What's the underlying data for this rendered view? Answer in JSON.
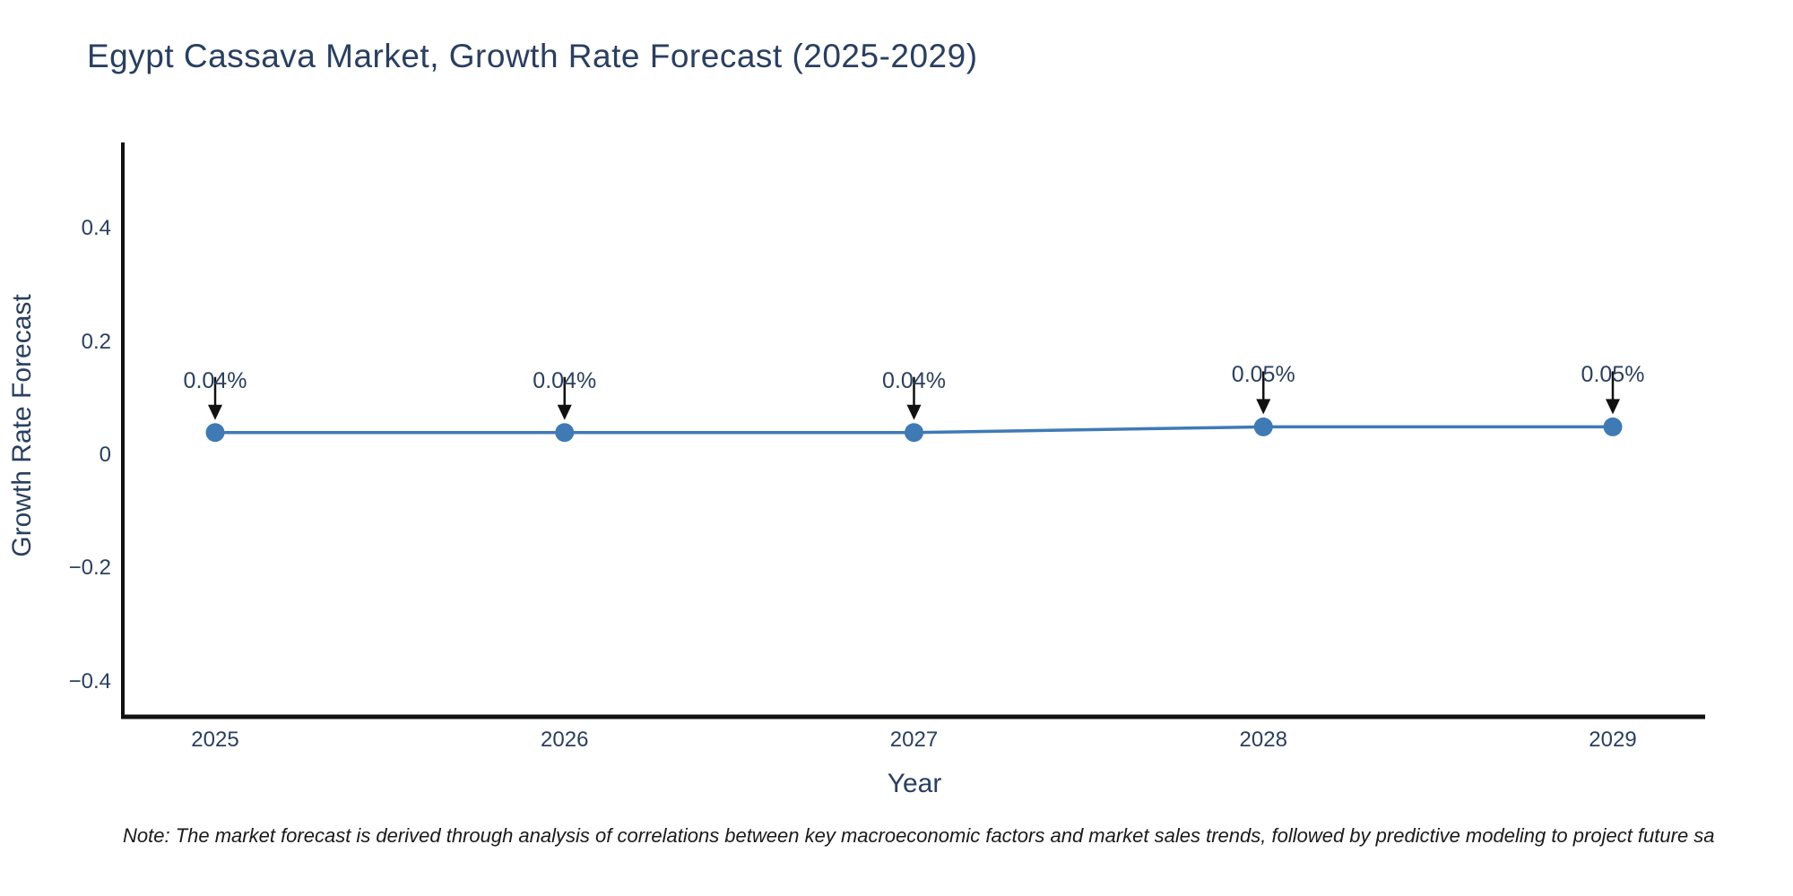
{
  "chart_data": {
    "type": "line",
    "title": "Egypt Cassava Market, Growth Rate Forecast (2025-2029)",
    "xlabel": "Year",
    "ylabel": "Growth Rate Forecast",
    "x": [
      2025,
      2026,
      2027,
      2028,
      2029
    ],
    "series": [
      {
        "name": "Growth Rate Forecast",
        "values": [
          0.04,
          0.04,
          0.04,
          0.05,
          0.05
        ]
      }
    ],
    "point_labels": [
      "0.04%",
      "0.04%",
      "0.04%",
      "0.05%",
      "0.05%"
    ],
    "ytick_labels": [
      "0.4",
      "0.2",
      "0",
      "−0.2",
      "−0.4"
    ],
    "yticks": [
      0.4,
      0.2,
      0,
      -0.2,
      -0.4
    ],
    "ylim": [
      -0.46,
      0.55
    ],
    "grid": false,
    "legend_position": "none",
    "line_color": "#3f7ab5",
    "marker_color": "#3f7ab5",
    "axis_color": "#111111",
    "annotation_arrow_color": "#111111",
    "title_color": "#2a3f5f",
    "tick_color": "#2a3f5f"
  },
  "footnote": "Note: The market forecast is derived through analysis of correlations between key macroeconomic factors and market sales trends, followed by predictive modeling to project future sa"
}
